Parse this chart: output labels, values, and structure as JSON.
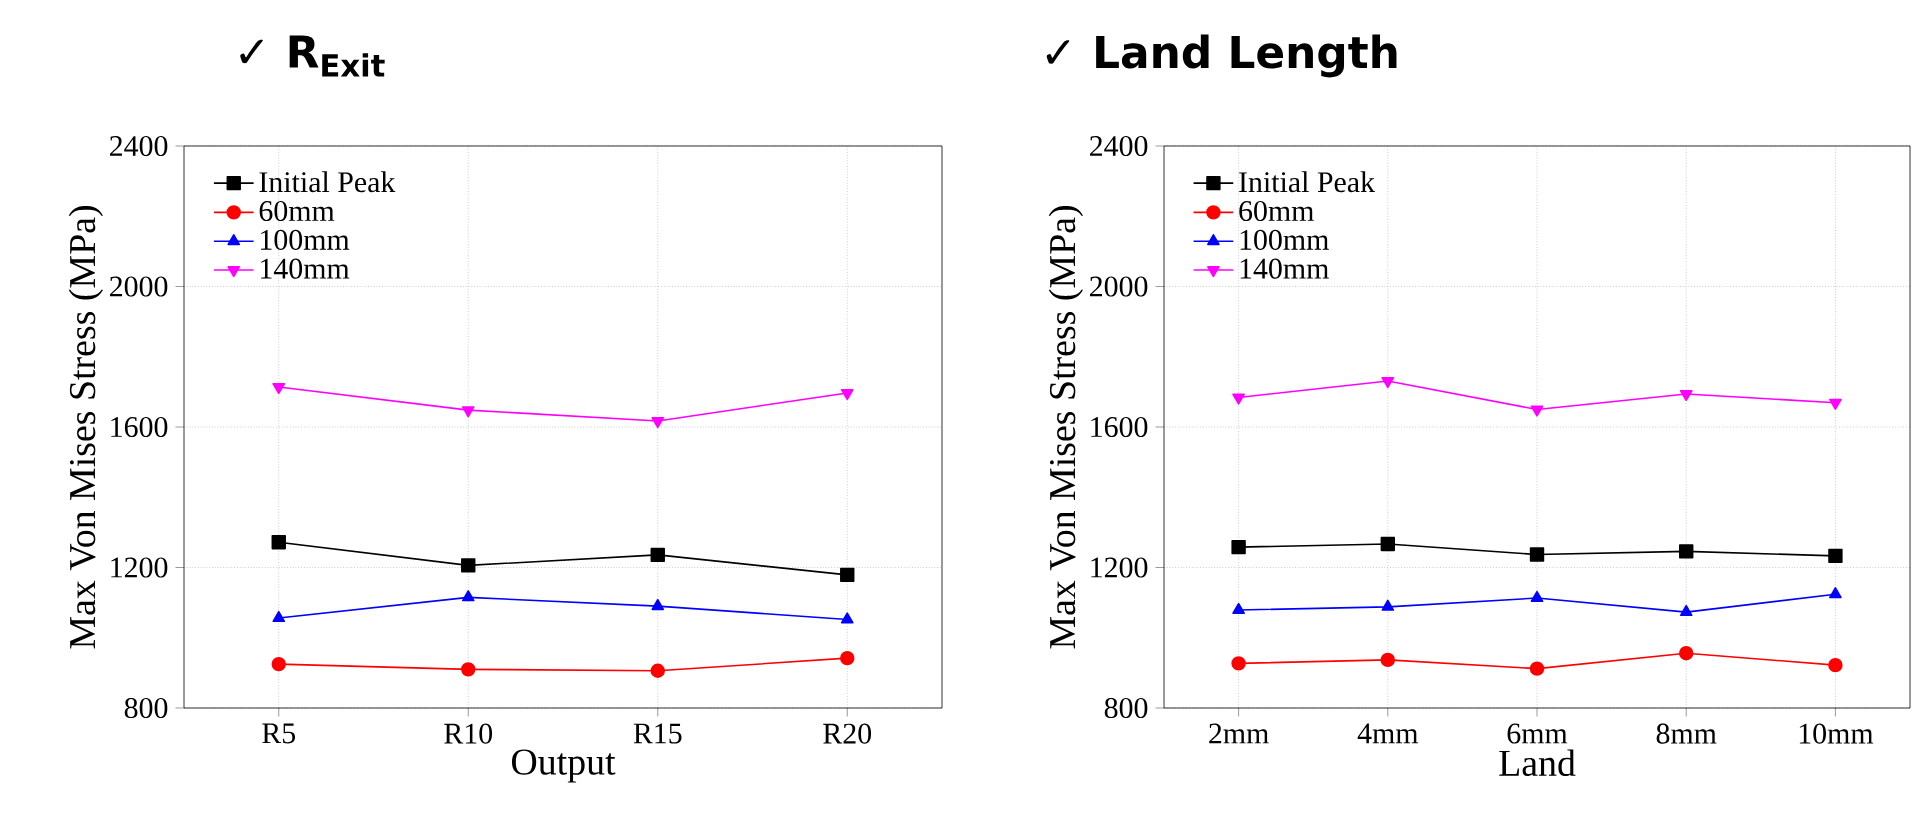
{
  "chart_data": [
    {
      "type": "line",
      "title": "✓ R$_{Exit}$",
      "xlabel": "Output",
      "ylabel": "Max Von Mises Stress (MPa)",
      "categories": [
        "R5",
        "R10",
        "R15",
        "R20"
      ],
      "series": [
        {
          "name": "Initial Peak",
          "color": "#000000",
          "marker": "square",
          "values": [
            1272,
            1206,
            1236,
            1179
          ]
        },
        {
          "name": "60mm",
          "color": "#ff0000",
          "marker": "circle",
          "values": [
            925,
            910,
            906,
            942
          ]
        },
        {
          "name": "100mm",
          "color": "#0000ff",
          "marker": "triangle",
          "values": [
            1056,
            1115,
            1090,
            1052
          ]
        },
        {
          "name": "140mm",
          "color": "#ff00ff",
          "marker": "triangle-down",
          "values": [
            1714,
            1648,
            1617,
            1697
          ]
        }
      ],
      "ylim": [
        800,
        2400
      ],
      "yticks": [
        800,
        1200,
        1600,
        2000,
        2400
      ],
      "grid": true,
      "legend": "top left"
    },
    {
      "type": "line",
      "title": "✓ Land Length",
      "xlabel": "Land",
      "ylabel": "Max Von Mises Stress (MPa)",
      "categories": [
        "2mm",
        "4mm",
        "6mm",
        "8mm",
        "10mm"
      ],
      "series": [
        {
          "name": "Initial Peak",
          "color": "#000000",
          "marker": "square",
          "values": [
            1258,
            1267,
            1237,
            1246,
            1233
          ]
        },
        {
          "name": "60mm",
          "color": "#ff0000",
          "marker": "circle",
          "values": [
            927,
            937,
            912,
            956,
            922
          ]
        },
        {
          "name": "100mm",
          "color": "#0000ff",
          "marker": "triangle",
          "values": [
            1079,
            1088,
            1113,
            1073,
            1124
          ]
        },
        {
          "name": "140mm",
          "color": "#ff00ff",
          "marker": "triangle-down",
          "values": [
            1684,
            1731,
            1650,
            1694,
            1669
          ]
        }
      ],
      "ylim": [
        800,
        2400
      ],
      "yticks": [
        800,
        1200,
        1600,
        2000,
        2400
      ],
      "grid": true,
      "legend": "top left"
    }
  ]
}
